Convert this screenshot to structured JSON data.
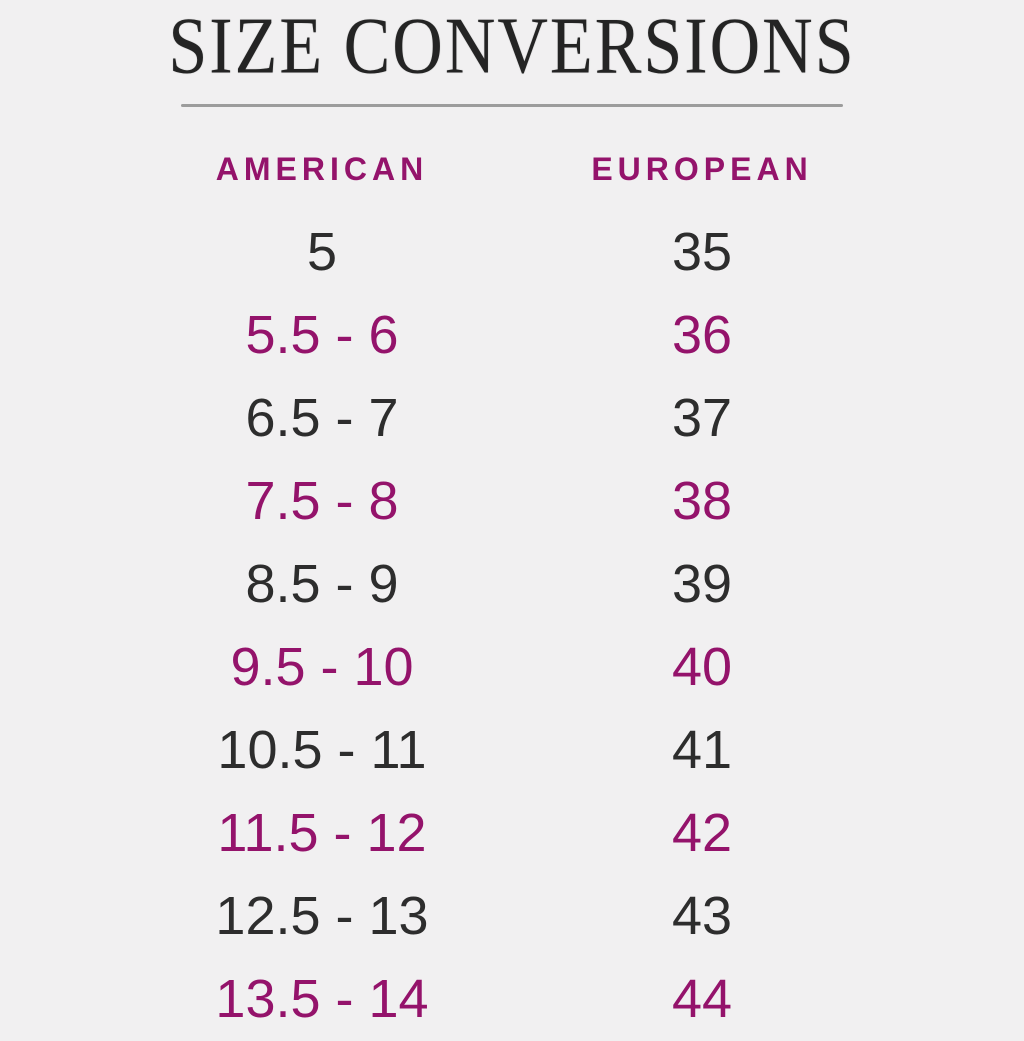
{
  "colors": {
    "background": "#f1f0f1",
    "title_text": "#242424",
    "row_text": "#2d2d2d",
    "accent": "#94136b",
    "divider": "#9c9c9c"
  },
  "chart_data": {
    "type": "table",
    "title": "SIZE CONVERSIONS",
    "columns": [
      "AMERICAN",
      "EUROPEAN"
    ],
    "rows": [
      [
        "5",
        "35"
      ],
      [
        "5.5 - 6",
        "36"
      ],
      [
        "6.5 - 7",
        "37"
      ],
      [
        "7.5 - 8",
        "38"
      ],
      [
        "8.5 - 9",
        "39"
      ],
      [
        "9.5 - 10",
        "40"
      ],
      [
        "10.5 - 11",
        "41"
      ],
      [
        "11.5 - 12",
        "42"
      ],
      [
        "12.5 - 13",
        "43"
      ],
      [
        "13.5 - 14",
        "44"
      ]
    ]
  }
}
